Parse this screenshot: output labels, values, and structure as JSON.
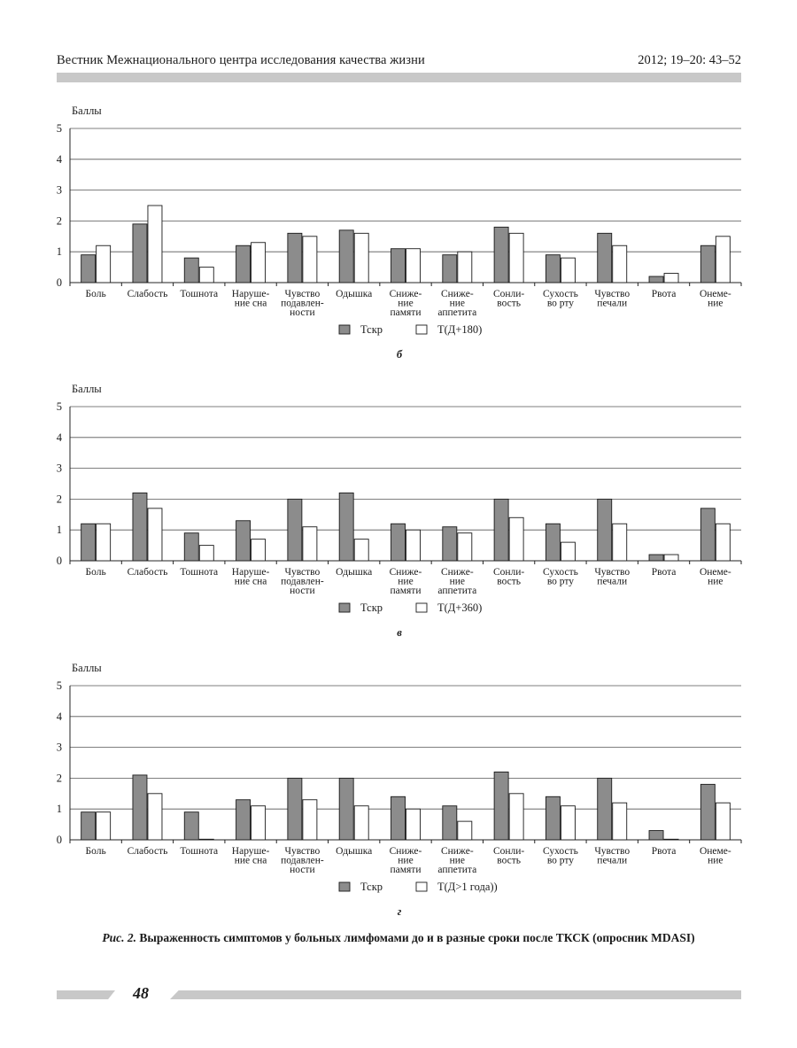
{
  "header": {
    "journal": "Вестник Межнационального центра исследования качества жизни",
    "ref": "2012; 19–20: 43–52"
  },
  "categories": [
    "Боль",
    "Слабость",
    "Тошнота",
    "Наруше-\nние сна",
    "Чувство\nподавлен-\nности",
    "Одышка",
    "Сниже-\nние\nпамяти",
    "Сниже-\nние\nаппетита",
    "Сонли-\nвость",
    "Сухость\nво рту",
    "Чувство\nпечали",
    "Рвота",
    "Онеме-\nние"
  ],
  "colors": {
    "series1": "#8c8c8c",
    "series2": "#ffffff",
    "grid": "#555555"
  },
  "chart_data": [
    {
      "type": "bar",
      "panel_letter": "б",
      "ylabel": "Баллы",
      "ylim": [
        0,
        5
      ],
      "yticks": [
        0,
        1,
        2,
        3,
        4,
        5
      ],
      "legend_position": "bottom",
      "series": [
        {
          "name": "Тскр",
          "values": [
            0.9,
            1.9,
            0.8,
            1.2,
            1.6,
            1.7,
            1.1,
            0.9,
            1.8,
            0.9,
            1.6,
            0.2,
            1.2
          ]
        },
        {
          "name": "Т(Д+180)",
          "values": [
            1.2,
            2.5,
            0.5,
            1.3,
            1.5,
            1.6,
            1.1,
            1.0,
            1.6,
            0.8,
            1.2,
            0.3,
            1.5
          ]
        }
      ]
    },
    {
      "type": "bar",
      "panel_letter": "в",
      "ylabel": "Баллы",
      "ylim": [
        0,
        5
      ],
      "yticks": [
        0,
        1,
        2,
        3,
        4,
        5
      ],
      "legend_position": "bottom",
      "series": [
        {
          "name": "Тскр",
          "values": [
            1.2,
            2.2,
            0.9,
            1.3,
            2.0,
            2.2,
            1.2,
            1.1,
            2.0,
            1.2,
            2.0,
            0.2,
            1.7
          ]
        },
        {
          "name": "Т(Д+360)",
          "values": [
            1.2,
            1.7,
            0.5,
            0.7,
            1.1,
            0.7,
            1.0,
            0.9,
            1.4,
            0.6,
            1.2,
            0.2,
            1.2
          ]
        }
      ]
    },
    {
      "type": "bar",
      "panel_letter": "г",
      "ylabel": "Баллы",
      "ylim": [
        0,
        5
      ],
      "yticks": [
        0,
        1,
        2,
        3,
        4,
        5
      ],
      "legend_position": "bottom",
      "series": [
        {
          "name": "Тскр",
          "values": [
            0.9,
            2.1,
            0.9,
            1.3,
            2.0,
            2.0,
            1.4,
            1.1,
            2.2,
            1.4,
            2.0,
            0.3,
            1.8
          ]
        },
        {
          "name": "Т(Д>1 года))",
          "values": [
            0.9,
            1.5,
            0.02,
            1.1,
            1.3,
            1.1,
            1.0,
            0.6,
            1.5,
            1.1,
            1.2,
            0.02,
            1.2
          ]
        }
      ]
    }
  ],
  "caption": {
    "lead": "Рис. 2.",
    "text": " Выраженность симптомов у больных лимфомами до и в разные сроки после ТКСК (опросник MDASI)"
  },
  "page_number": "48"
}
